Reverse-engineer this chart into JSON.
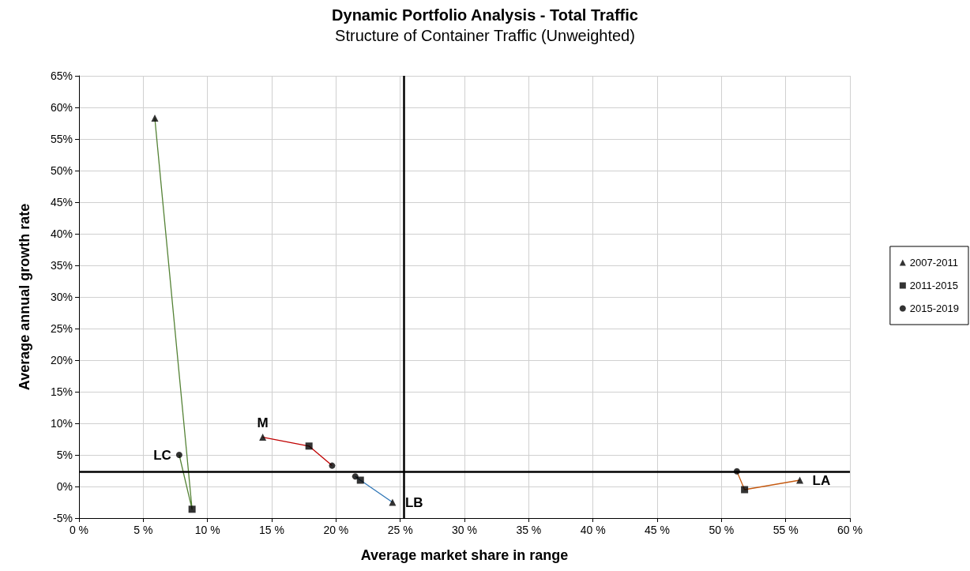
{
  "chart_data": {
    "type": "scatter",
    "title": "Dynamic Portfolio Analysis - Total Traffic",
    "subtitle": "Structure of Container Traffic (Unweighted)",
    "xlabel": "Average market share in range",
    "ylabel": "Average annual growth rate",
    "xlim": [
      0,
      60
    ],
    "xticks": [
      {
        "value": 0,
        "label": "0 %"
      },
      {
        "value": 5,
        "label": "5 %"
      },
      {
        "value": 10,
        "label": "10 %"
      },
      {
        "value": 15,
        "label": "15 %"
      },
      {
        "value": 20,
        "label": "20 %"
      },
      {
        "value": 25,
        "label": "25 %"
      },
      {
        "value": 30,
        "label": "30 %"
      },
      {
        "value": 35,
        "label": "35 %"
      },
      {
        "value": 40,
        "label": "40 %"
      },
      {
        "value": 45,
        "label": "45 %"
      },
      {
        "value": 50,
        "label": "50 %"
      },
      {
        "value": 55,
        "label": "55 %"
      },
      {
        "value": 60,
        "label": "60 %"
      }
    ],
    "ylim": [
      -5,
      65
    ],
    "yticks": [
      {
        "value": -5,
        "label": "-5%"
      },
      {
        "value": 0,
        "label": "0%"
      },
      {
        "value": 5,
        "label": "5%"
      },
      {
        "value": 10,
        "label": "10%"
      },
      {
        "value": 15,
        "label": "15%"
      },
      {
        "value": 20,
        "label": "20%"
      },
      {
        "value": 25,
        "label": "25%"
      },
      {
        "value": 30,
        "label": "30%"
      },
      {
        "value": 35,
        "label": "35%"
      },
      {
        "value": 40,
        "label": "40%"
      },
      {
        "value": 45,
        "label": "45%"
      },
      {
        "value": 50,
        "label": "50%"
      },
      {
        "value": 55,
        "label": "55%"
      },
      {
        "value": 60,
        "label": "60%"
      },
      {
        "value": 65,
        "label": "65%"
      }
    ],
    "grid": true,
    "legend": "right",
    "series": [
      {
        "name": "LC",
        "type": "line",
        "marker": "none",
        "color": "#548235",
        "x": [
          7.8,
          8.8,
          5.9
        ],
        "values": [
          5.0,
          -3.6,
          58.3
        ]
      },
      {
        "name": "M",
        "type": "line",
        "marker": "none",
        "color": "#c00000",
        "x": [
          14.3,
          17.9,
          19.7
        ],
        "values": [
          7.8,
          6.4,
          3.3
        ]
      },
      {
        "name": "LB",
        "type": "line",
        "marker": "none",
        "color": "#2e75b6",
        "x": [
          24.4,
          21.9,
          21.5
        ],
        "values": [
          -2.5,
          1.0,
          1.6
        ]
      },
      {
        "name": "LA",
        "type": "line",
        "marker": "none",
        "color": "#c55a11",
        "x": [
          56.1,
          51.8,
          51.2
        ],
        "values": [
          1.0,
          -0.5,
          2.4
        ]
      },
      {
        "name": "2007-2011",
        "marker": "triangle",
        "color": "#000000",
        "x": [
          5.9,
          14.3,
          24.4,
          56.1
        ],
        "values": [
          58.3,
          7.8,
          -2.5,
          1.0
        ]
      },
      {
        "name": "2011-2015",
        "marker": "square",
        "color": "#000000",
        "x": [
          8.8,
          17.9,
          21.9,
          51.8
        ],
        "values": [
          -3.6,
          6.4,
          1.0,
          -0.5
        ]
      },
      {
        "name": "2015-2019",
        "marker": "circle",
        "color": "#000000",
        "x": [
          7.8,
          19.7,
          21.5,
          51.2
        ],
        "values": [
          5.0,
          3.3,
          1.6,
          2.4
        ]
      }
    ],
    "ref_lines": [
      {
        "axis": "x",
        "value": 25.3,
        "color": "#000000"
      },
      {
        "axis": "y",
        "value": 2.4,
        "color": "#000000"
      }
    ]
  }
}
